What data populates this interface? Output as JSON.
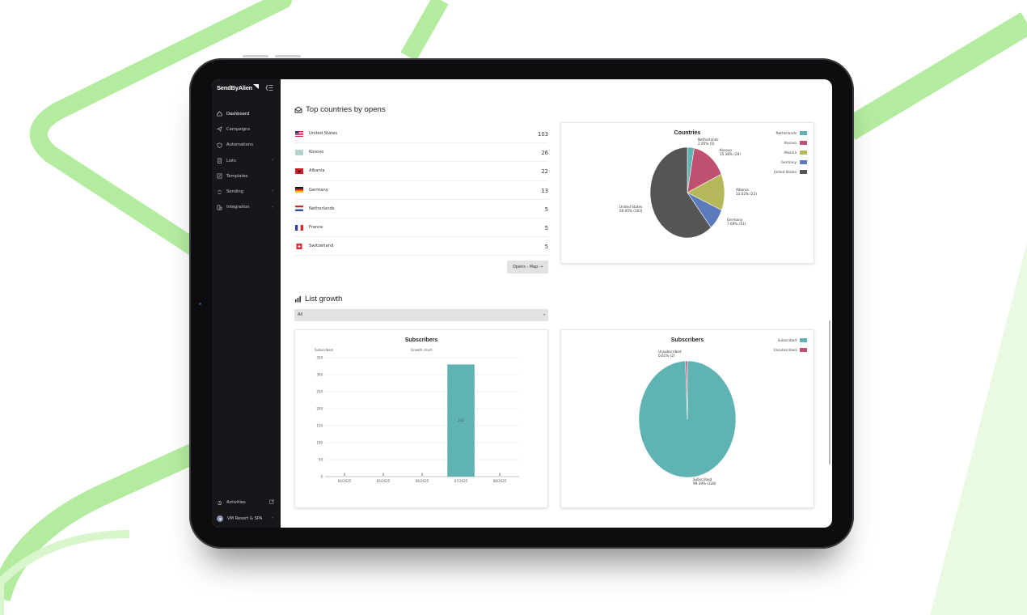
{
  "app": {
    "brand": "SendByAlien"
  },
  "sidebar": {
    "items": [
      {
        "label": "Dashboard",
        "icon": "home-icon",
        "active": true,
        "has_children": false
      },
      {
        "label": "Campaigns",
        "icon": "send-icon",
        "active": false,
        "has_children": false
      },
      {
        "label": "Automations",
        "icon": "shield-icon",
        "active": false,
        "has_children": false
      },
      {
        "label": "Lists",
        "icon": "list-icon",
        "active": false,
        "has_children": true
      },
      {
        "label": "Templates",
        "icon": "template-icon",
        "active": false,
        "has_children": false
      },
      {
        "label": "Sending",
        "icon": "sending-icon",
        "active": false,
        "has_children": true
      },
      {
        "label": "Integration",
        "icon": "integration-icon",
        "active": false,
        "has_children": true
      }
    ],
    "activities_label": "Activities",
    "account_label": "VM Resort & SPA"
  },
  "top_countries": {
    "title": "Top countries by opens",
    "rows": [
      {
        "country": "United States",
        "opens": "103",
        "flag": "us-flag-icon"
      },
      {
        "country": "Kosovo",
        "opens": "26",
        "flag": "kosovo-flag-icon"
      },
      {
        "country": "Albania",
        "opens": "22",
        "flag": "albania-flag-icon"
      },
      {
        "country": "Germany",
        "opens": "13",
        "flag": "germany-flag-icon"
      },
      {
        "country": "Netherlands",
        "opens": "5",
        "flag": "netherlands-flag-icon"
      },
      {
        "country": "France",
        "opens": "5",
        "flag": "france-flag-icon"
      },
      {
        "country": "Switzerland",
        "opens": "5",
        "flag": "switzerland-flag-icon"
      }
    ],
    "map_button": "Opens - Map →"
  },
  "list_growth": {
    "title": "List growth",
    "select_value": "All"
  },
  "colors": {
    "sidebar_bg": "#17171b",
    "teal": "#5fb4b3",
    "rose": "#c0506f",
    "olive": "#b5b85a",
    "blue": "#5b7bbd",
    "dark_gray": "#555555",
    "accent_green": "#b3ec9f"
  },
  "chart_data": [
    {
      "type": "pie",
      "title": "Countries",
      "slices": [
        {
          "label": "Netherlands",
          "value": 5,
          "text": "2.95% (5)",
          "color": "#5fb4b3"
        },
        {
          "label": "Kosovo",
          "value": 26,
          "text": "15.38% (26)",
          "color": "#c0506f"
        },
        {
          "label": "Albania",
          "value": 22,
          "text": "13.02% (22)",
          "color": "#b5b85a"
        },
        {
          "label": "Germany",
          "value": 13,
          "text": "7.69% (13)",
          "color": "#5b7bbd"
        },
        {
          "label": "United States",
          "value": 103,
          "text": "60.95% (103)",
          "color": "#555555"
        }
      ],
      "legend": [
        "Netherlands",
        "Kosovo",
        "Albania",
        "Germany",
        "United States"
      ],
      "legend_position": "top-right"
    },
    {
      "type": "bar",
      "title": "Subscribers",
      "ylabel": "Subscribers",
      "xlabel": "Growth chart",
      "categories": [
        "04/2025",
        "05/2025",
        "06/2025",
        "07/2025",
        "08/2025"
      ],
      "values": [
        0,
        0,
        0,
        330,
        0
      ],
      "ylim": [
        0,
        350
      ],
      "yticks": [
        0,
        50,
        100,
        150,
        200,
        250,
        300,
        350
      ],
      "grid": true,
      "color": "#5fb4b3"
    },
    {
      "type": "pie",
      "title": "Subscribers",
      "slices": [
        {
          "label": "Subscribed",
          "value": 328,
          "text": "99.39% (328)",
          "color": "#5fb4b3"
        },
        {
          "label": "Unsubscribed",
          "value": 2,
          "text": "0.61% (2)",
          "color": "#c0506f"
        }
      ],
      "legend": [
        "Subscribed",
        "Unsubscribed"
      ],
      "legend_position": "top-right"
    }
  ]
}
